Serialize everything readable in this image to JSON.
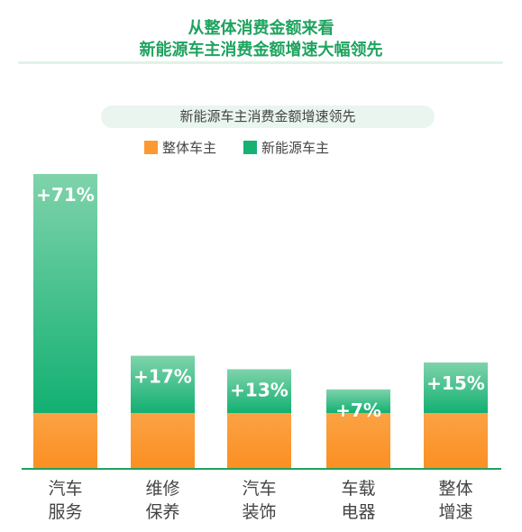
{
  "header": {
    "title_line1": "从整体消费金额来看",
    "title_line2": "新能源车主消费金额增速大幅领先"
  },
  "colors": {
    "title": "#1fa35f",
    "overall": "#fb9a32",
    "nev": "#17b174"
  },
  "chart_data": {
    "type": "bar",
    "subtitle": "新能源车主消费金额增速领先",
    "legend": [
      "整体车主",
      "新能源车主"
    ],
    "categories": [
      [
        "汽车",
        "服务"
      ],
      [
        "维修",
        "保养"
      ],
      [
        "汽车",
        "装饰"
      ],
      [
        "车载",
        "电器"
      ],
      [
        "整体",
        "增速"
      ]
    ],
    "values": [
      71,
      17,
      13,
      7,
      15
    ],
    "value_labels": [
      "+71%",
      "+17%",
      "+13%",
      "+7%",
      "+15%"
    ],
    "axis": {
      "visible": false
    },
    "grid": false,
    "legend_position": "top-center"
  }
}
